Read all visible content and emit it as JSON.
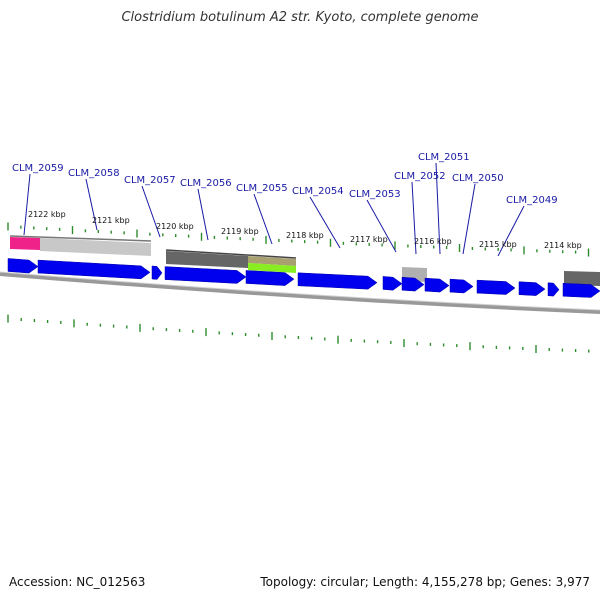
{
  "title": "Clostridium botulinum A2 str. Kyoto, complete genome",
  "footer": {
    "accession": "Accession: NC_012563",
    "summary": "Topology: circular; Length: 4,155,278 bp; Genes: 3,977"
  },
  "colors": {
    "gene_arrow": "#0000ee",
    "backbone": "#888888",
    "tick": "#2e8b2e",
    "label": "#1a1aa6",
    "feature_pink": "#ee2288",
    "feature_light_gray": "#c8c8c8",
    "feature_dark_gray": "#666666",
    "feature_olive": "#a8a070",
    "feature_lime": "#88ee22"
  },
  "genes": [
    "CLM_2059",
    "CLM_2058",
    "CLM_2057",
    "CLM_2056",
    "CLM_2055",
    "CLM_2054",
    "CLM_2053",
    "CLM_2052",
    "CLM_2051",
    "CLM_2050",
    "CLM_2049"
  ],
  "ticks": [
    "2122 kbp",
    "2121 kbp",
    "2120 kbp",
    "2119 kbp",
    "2118 kbp",
    "2117 kbp",
    "2116 kbp",
    "2115 kbp",
    "2114 kbp"
  ]
}
